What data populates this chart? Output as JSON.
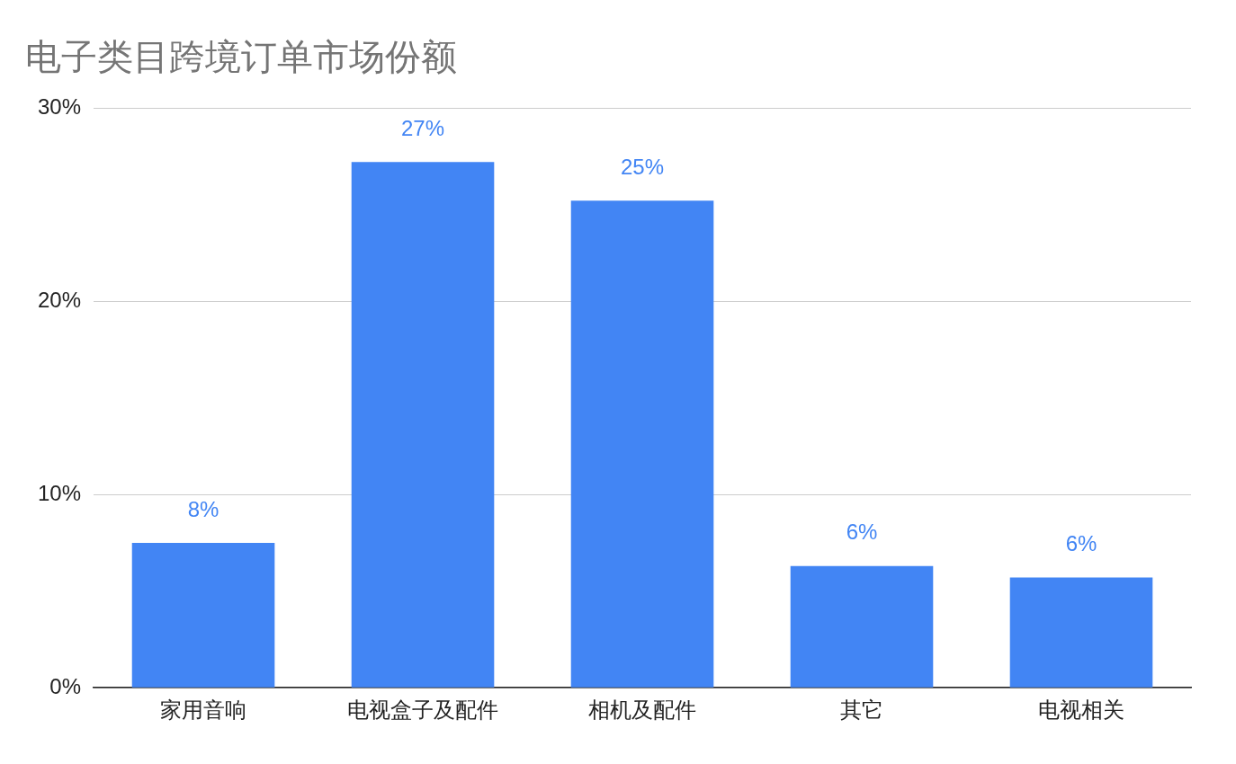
{
  "chart_data": {
    "type": "bar",
    "title": "电子类目跨境订单市场份额",
    "categories": [
      "家用音响",
      "电视盒子及配件",
      "相机及配件",
      "其它",
      "电视相关"
    ],
    "values": [
      7.5,
      27.2,
      25.2,
      6.3,
      5.7
    ],
    "value_labels": [
      "8%",
      "27%",
      "25%",
      "6%",
      "6%"
    ],
    "color": "#4285f4",
    "ylim": [
      0,
      30
    ],
    "yticks": [
      {
        "value": 0,
        "label": "0%"
      },
      {
        "value": 10,
        "label": "10%"
      },
      {
        "value": 20,
        "label": "20%"
      },
      {
        "value": 30,
        "label": "30%"
      }
    ],
    "grid": "y",
    "legend": false
  }
}
